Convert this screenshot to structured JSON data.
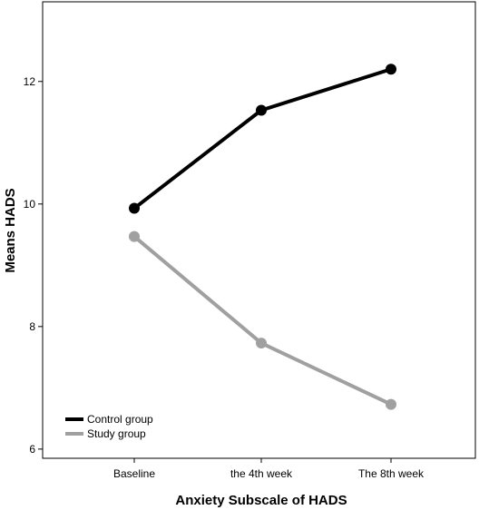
{
  "chart_data": {
    "type": "line",
    "title": "",
    "xlabel": "Anxiety Subscale of HADS",
    "ylabel": "Means HADS",
    "categories": [
      "Baseline",
      "the 4th week",
      "The 8th week"
    ],
    "ylim": [
      5.85,
      13.3
    ],
    "yticks": [
      6,
      8,
      10,
      12
    ],
    "grid": false,
    "legend_position": "bottom-left",
    "series": [
      {
        "name": "Control group",
        "color": "#000000",
        "values": [
          9.93,
          11.53,
          12.2
        ]
      },
      {
        "name": "Study group",
        "color": "#a0a0a0",
        "values": [
          9.47,
          7.73,
          6.73
        ]
      }
    ]
  }
}
